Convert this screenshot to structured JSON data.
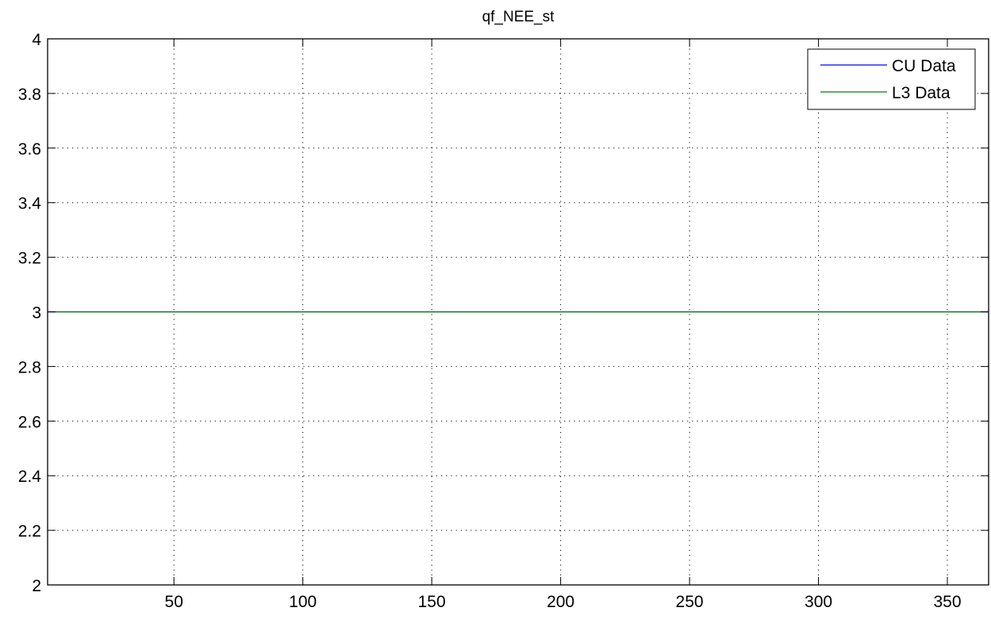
{
  "chart_data": {
    "type": "line",
    "title": "qf_NEE_st",
    "xlabel": "",
    "ylabel": "",
    "xlim": [
      1,
      366
    ],
    "ylim": [
      2,
      4
    ],
    "xticks": [
      50,
      100,
      150,
      200,
      250,
      300,
      350
    ],
    "xtick_labels": [
      "50",
      "100",
      "150",
      "200",
      "250",
      "300",
      "350"
    ],
    "yticks": [
      2,
      2.2,
      2.4,
      2.6,
      2.8,
      3,
      3.2,
      3.4,
      3.6,
      3.8,
      4
    ],
    "ytick_labels": [
      "2",
      "2.2",
      "2.4",
      "2.6",
      "2.8",
      "3",
      "3.2",
      "3.4",
      "3.6",
      "3.8",
      "4"
    ],
    "grid": true,
    "grid_style": "dotted",
    "legend_position": "top-right",
    "series": [
      {
        "name": "CU Data",
        "color": "#0000ff",
        "x": [
          1,
          366
        ],
        "y": [
          3,
          3
        ]
      },
      {
        "name": "L3 Data",
        "color": "#008000",
        "x": [
          1,
          366
        ],
        "y": [
          3,
          3
        ]
      }
    ]
  }
}
